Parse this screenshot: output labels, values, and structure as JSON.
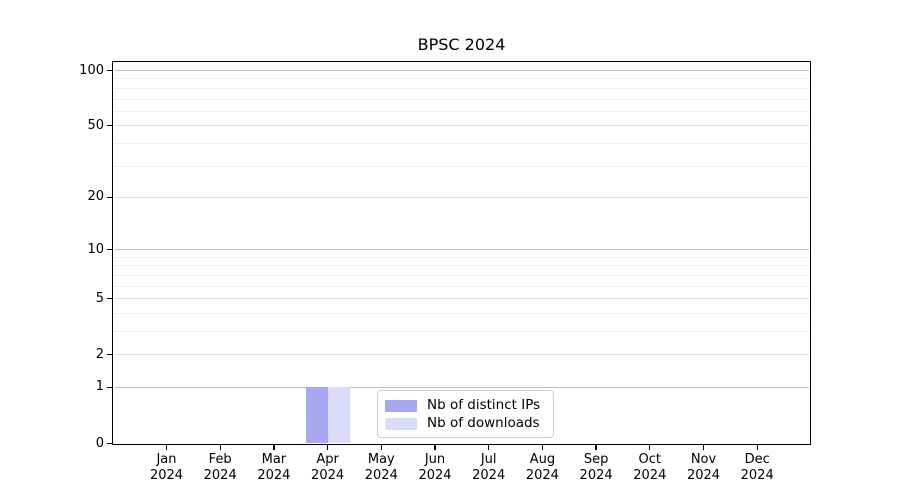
{
  "title": "BPSC 2024",
  "chart_data": {
    "type": "bar",
    "title": "BPSC 2024",
    "x_months": [
      "Jan",
      "Feb",
      "Mar",
      "Apr",
      "May",
      "Jun",
      "Jul",
      "Aug",
      "Sep",
      "Oct",
      "Nov",
      "Dec"
    ],
    "x_year": "2024",
    "series": [
      {
        "name": "Nb of distinct IPs",
        "color": "#a8a8f2",
        "values": [
          0,
          0,
          0,
          1,
          0,
          0,
          0,
          0,
          0,
          0,
          0,
          0
        ]
      },
      {
        "name": "Nb of downloads",
        "color": "#dcdcf8",
        "values": [
          0,
          0,
          0,
          1,
          0,
          0,
          0,
          0,
          0,
          0,
          0,
          0
        ]
      }
    ],
    "yscale": "log1p",
    "ylim": [
      0,
      112
    ],
    "ytick_labels": [
      0,
      1,
      2,
      5,
      10,
      20,
      50,
      100
    ],
    "ytick_major": [
      1,
      10,
      100
    ],
    "ytick_minor": [
      3,
      4,
      6,
      7,
      8,
      9,
      30,
      40,
      60,
      70,
      80,
      90
    ],
    "grid": "horizontal",
    "legend": {
      "position": "lower center",
      "items": [
        {
          "label": "Nb of distinct IPs",
          "color": "#a8a8f2"
        },
        {
          "label": "Nb of downloads",
          "color": "#dcdcf8"
        }
      ]
    },
    "colors": {
      "grid_major": "#c2c2c2",
      "grid_labeled": "#e0e0e0",
      "grid_minor": "#eeeeee",
      "spine": "#000000",
      "background": "#ffffff"
    }
  }
}
